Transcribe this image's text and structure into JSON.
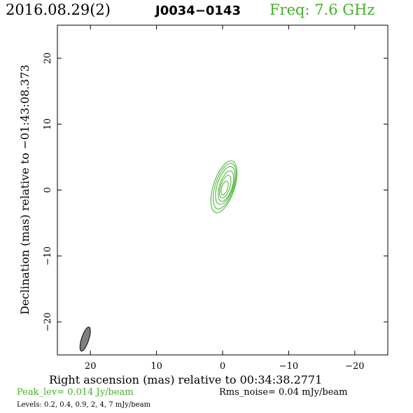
{
  "header": {
    "date": "2016.08.29(2)",
    "source": "J0034−0143",
    "freq": "Freq: 7.6 GHz"
  },
  "footer": {
    "peak": "Peak_lev=  0.014 Jy/beam",
    "rms": "Rms_noise= 0.04 mJy/beam",
    "levels": "Levels: 0.2, 0.4, 0.9,    2,    4,    7 mJy/beam"
  },
  "colors": {
    "contour": "#43b02a",
    "beam_fill": "#808080",
    "axes": "#000000"
  },
  "chart_data": {
    "type": "contour",
    "xlabel": "Right ascension (mas) relative to 00:34:38.2771",
    "ylabel": "Declination (mas) relative to −01:43:08.373",
    "xlim": [
      25,
      -25
    ],
    "ylim": [
      -25,
      25
    ],
    "xticks": [
      20,
      10,
      0,
      -10,
      -20
    ],
    "xtick_labels": [
      "20",
      "10",
      "0",
      "−10",
      "−20"
    ],
    "yticks": [
      20,
      10,
      0,
      -10,
      -20
    ],
    "ytick_labels": [
      "20",
      "10",
      "0",
      "−10",
      "−20"
    ],
    "levels_mJy_per_beam": [
      0.2,
      0.4,
      0.9,
      2,
      4,
      7
    ],
    "contours": [
      {
        "level": 0.2,
        "center": [
          -0.2,
          0.5
        ],
        "semi_major": 4.1,
        "semi_minor": 1.6,
        "pa_deg": 18
      },
      {
        "level": 0.4,
        "center": [
          -0.3,
          0.6
        ],
        "semi_major": 3.6,
        "semi_minor": 1.4,
        "pa_deg": 18
      },
      {
        "level": 0.9,
        "center": [
          -0.4,
          0.7
        ],
        "semi_major": 3.0,
        "semi_minor": 1.2,
        "pa_deg": 18
      },
      {
        "level": 2,
        "center": [
          -0.5,
          0.6
        ],
        "semi_major": 2.4,
        "semi_minor": 0.95,
        "pa_deg": 18
      },
      {
        "level": 4,
        "center": [
          -0.4,
          0.5
        ],
        "semi_major": 1.8,
        "semi_minor": 0.7,
        "pa_deg": 18
      },
      {
        "level": 7,
        "center": [
          -0.3,
          0.3
        ],
        "semi_major": 1.1,
        "semi_minor": 0.45,
        "pa_deg": 18
      }
    ],
    "beam": {
      "center": [
        20.8,
        -22.6
      ],
      "semi_major": 1.9,
      "semi_minor": 0.55,
      "pa_deg": 18
    }
  }
}
